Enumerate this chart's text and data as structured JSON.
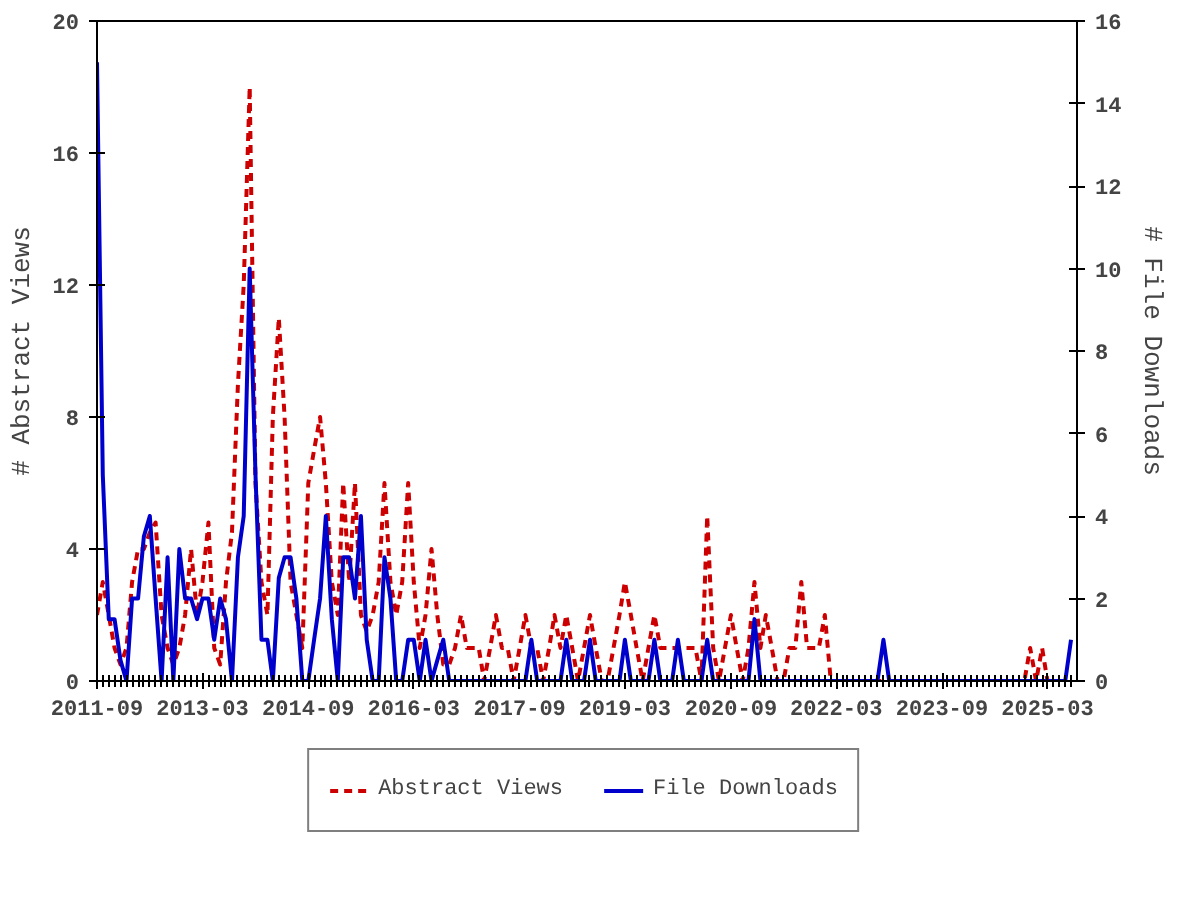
{
  "chart_data": {
    "type": "line",
    "xlabel": null,
    "ylabel": "# Abstract Views",
    "y2label": "# File Downloads",
    "x": [
      "2011-09",
      "2011-10",
      "2011-11",
      "2011-12",
      "2012-01",
      "2012-02",
      "2012-03",
      "2012-04",
      "2012-05",
      "2012-06",
      "2012-07",
      "2012-08",
      "2012-09",
      "2012-10",
      "2012-11",
      "2012-12",
      "2013-01",
      "2013-02",
      "2013-03",
      "2013-04",
      "2013-05",
      "2013-06",
      "2013-07",
      "2013-08",
      "2013-09",
      "2013-10",
      "2013-11",
      "2013-12",
      "2014-01",
      "2014-02",
      "2014-03",
      "2014-04",
      "2014-05",
      "2014-06",
      "2014-07",
      "2014-08",
      "2014-09",
      "2014-10",
      "2014-11",
      "2014-12",
      "2015-01",
      "2015-02",
      "2015-03",
      "2015-04",
      "2015-05",
      "2015-06",
      "2015-07",
      "2015-08",
      "2015-09",
      "2015-10",
      "2015-11",
      "2015-12",
      "2016-01",
      "2016-02",
      "2016-03",
      "2016-04",
      "2016-05",
      "2016-06",
      "2016-07",
      "2016-08",
      "2016-09",
      "2016-10",
      "2016-11",
      "2016-12",
      "2017-01",
      "2017-02",
      "2017-03",
      "2017-04",
      "2017-05",
      "2017-06",
      "2017-07",
      "2017-08",
      "2017-09",
      "2017-10",
      "2017-11",
      "2017-12",
      "2018-01",
      "2018-02",
      "2018-03",
      "2018-04",
      "2018-05",
      "2018-06",
      "2018-07",
      "2018-08",
      "2018-09",
      "2018-10",
      "2018-11",
      "2018-12",
      "2019-01",
      "2019-02",
      "2019-03",
      "2019-04",
      "2019-05",
      "2019-06",
      "2019-07",
      "2019-08",
      "2019-09",
      "2019-10",
      "2019-11",
      "2019-12",
      "2020-01",
      "2020-02",
      "2020-03",
      "2020-04",
      "2020-05",
      "2020-06",
      "2020-07",
      "2020-08",
      "2020-09",
      "2020-10",
      "2020-11",
      "2020-12",
      "2021-01",
      "2021-02",
      "2021-03",
      "2021-04",
      "2021-05",
      "2021-06",
      "2021-07",
      "2021-08",
      "2021-09",
      "2021-10",
      "2021-11",
      "2021-12",
      "2022-01",
      "2022-02",
      "2022-03",
      "2022-04",
      "2022-05",
      "2022-06",
      "2022-07",
      "2022-08",
      "2022-09",
      "2022-10",
      "2022-11",
      "2022-12",
      "2023-01",
      "2023-02",
      "2023-03",
      "2023-04",
      "2023-05",
      "2023-06",
      "2023-07",
      "2023-08",
      "2023-09",
      "2023-10",
      "2023-11",
      "2023-12",
      "2024-01",
      "2024-02",
      "2024-03",
      "2024-04",
      "2024-05",
      "2024-06",
      "2024-07",
      "2024-08",
      "2024-09",
      "2024-10",
      "2024-11",
      "2024-12",
      "2025-01",
      "2025-02",
      "2025-03",
      "2025-04",
      "2025-05",
      "2025-06",
      "2025-07"
    ],
    "series": [
      {
        "name": "Abstract Views",
        "color": "#cc0000",
        "line_style": "dashed",
        "values": [
          2,
          3,
          2,
          1,
          0.5,
          1,
          3,
          4,
          4,
          4.5,
          4.8,
          2,
          1,
          0.5,
          1,
          2,
          4,
          2,
          3,
          4.8,
          1,
          0.5,
          3,
          4.5,
          9,
          12,
          18,
          6,
          3,
          2,
          8,
          11,
          8,
          3,
          2,
          1,
          6,
          7,
          8,
          6,
          3,
          2,
          6,
          3,
          6,
          2,
          1.5,
          2,
          3,
          6,
          3,
          2,
          3,
          6,
          3,
          1,
          2,
          4,
          2,
          0.5,
          0.5,
          1,
          2,
          1,
          1,
          1,
          0,
          1,
          2,
          1,
          1,
          0,
          1,
          2,
          1,
          1,
          0,
          1,
          2,
          1,
          2,
          1,
          0,
          1,
          2,
          1,
          0,
          0,
          1,
          2,
          3,
          2,
          1,
          0,
          1,
          2,
          1,
          1,
          1,
          1,
          1,
          1,
          1,
          0,
          5,
          1,
          0,
          1,
          2,
          1,
          0,
          1,
          3,
          1,
          2,
          1,
          0,
          0,
          1,
          1,
          3,
          1,
          1,
          1,
          2,
          0,
          0,
          0,
          0,
          0,
          0,
          0,
          0,
          0,
          0,
          0,
          0,
          0,
          0,
          0,
          0,
          0,
          0,
          0,
          0,
          0,
          0,
          0,
          0,
          0,
          0,
          0,
          0,
          0,
          0,
          0,
          0,
          0,
          0,
          1,
          0,
          1,
          0,
          0,
          0,
          0,
          0
        ]
      },
      {
        "name": "File Downloads",
        "color": "#0000cc",
        "line_style": "solid",
        "axis": "y2",
        "values": [
          15,
          5,
          1.5,
          1.5,
          0.5,
          0,
          2,
          2,
          3.5,
          4,
          2,
          0,
          3,
          0,
          3.2,
          2,
          2,
          1.5,
          2,
          2,
          1,
          2,
          1.5,
          0,
          3,
          4,
          10,
          5,
          1,
          1,
          0,
          2.5,
          3,
          3,
          2,
          0,
          0,
          1,
          2,
          4,
          1.5,
          0,
          3,
          3,
          2,
          4,
          1,
          0,
          0,
          3,
          2,
          0,
          0,
          1,
          1,
          0,
          1,
          0,
          0.5,
          1,
          0,
          0,
          0,
          0,
          0,
          0,
          0,
          0,
          0,
          0,
          0,
          0,
          0,
          0,
          1,
          0,
          0,
          0,
          0,
          0,
          1,
          0,
          0,
          0,
          1,
          0,
          0,
          0,
          0,
          0,
          1,
          0,
          0,
          0,
          0,
          1,
          0,
          0,
          0,
          1,
          0,
          0,
          0,
          0,
          1,
          0,
          0,
          0,
          0,
          0,
          0,
          0,
          1.5,
          0,
          0,
          0,
          0,
          0,
          0,
          0,
          0,
          0,
          0,
          0,
          0,
          0,
          0,
          0,
          0,
          0,
          0,
          0,
          0,
          0,
          1,
          0,
          0,
          0,
          0,
          0,
          0,
          0,
          0,
          0,
          0,
          0,
          0,
          0,
          0,
          0,
          0,
          0,
          0,
          0,
          0,
          0,
          0,
          0,
          0,
          0,
          0,
          0,
          0,
          0,
          0,
          0,
          1
        ]
      }
    ],
    "xlim": [
      "2011-09",
      "2025-08"
    ],
    "xticks": [
      "2011-09",
      "2013-03",
      "2014-09",
      "2016-03",
      "2017-09",
      "2019-03",
      "2020-09",
      "2022-03",
      "2023-09",
      "2025-03"
    ],
    "ylim": [
      0,
      20
    ],
    "yticks": [
      0,
      4,
      8,
      12,
      16,
      20
    ],
    "y2lim": [
      0,
      16
    ],
    "y2ticks": [
      0,
      2,
      4,
      6,
      8,
      10,
      12,
      14,
      16
    ],
    "legend": "bottom"
  }
}
